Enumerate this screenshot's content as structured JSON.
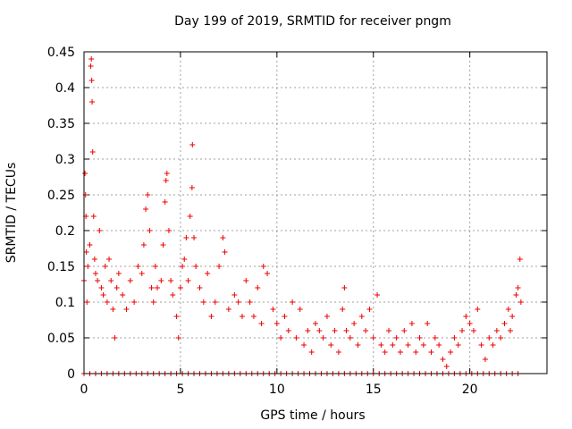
{
  "chart_data": {
    "type": "scatter",
    "title": "Day 199 of 2019, SRMTID for receiver pngm",
    "xlabel": "GPS time / hours",
    "ylabel": "SRMTID / TECUs",
    "xlim": [
      0,
      24
    ],
    "ylim": [
      0,
      0.45
    ],
    "xticks": [
      0,
      5,
      10,
      15,
      20
    ],
    "yticks": [
      0,
      0.05,
      0.1,
      0.15,
      0.2,
      0.25,
      0.3,
      0.35,
      0.4,
      0.45
    ],
    "ytick_labels": [
      "0",
      "0.05",
      "0.1",
      "0.15",
      "0.2",
      "0.25",
      "0.3",
      "0.35",
      "0.4",
      "0.45"
    ],
    "grid": true,
    "marker": "+",
    "color": "#ee0000",
    "series": [
      {
        "name": "SRMTID",
        "points": [
          [
            0.0,
            0.13
          ],
          [
            0.05,
            0.28
          ],
          [
            0.08,
            0.25
          ],
          [
            0.1,
            0.22
          ],
          [
            0.12,
            0.17
          ],
          [
            0.15,
            0.1
          ],
          [
            0.2,
            0.15
          ],
          [
            0.3,
            0.18
          ],
          [
            0.35,
            0.43
          ],
          [
            0.38,
            0.44
          ],
          [
            0.4,
            0.41
          ],
          [
            0.42,
            0.38
          ],
          [
            0.45,
            0.31
          ],
          [
            0.5,
            0.22
          ],
          [
            0.55,
            0.16
          ],
          [
            0.6,
            0.14
          ],
          [
            0.7,
            0.13
          ],
          [
            0.8,
            0.2
          ],
          [
            0.9,
            0.12
          ],
          [
            1.0,
            0.11
          ],
          [
            1.1,
            0.15
          ],
          [
            1.2,
            0.1
          ],
          [
            1.3,
            0.16
          ],
          [
            1.4,
            0.13
          ],
          [
            1.5,
            0.09
          ],
          [
            1.6,
            0.05
          ],
          [
            1.7,
            0.12
          ],
          [
            1.8,
            0.14
          ],
          [
            2.0,
            0.11
          ],
          [
            2.2,
            0.09
          ],
          [
            2.4,
            0.13
          ],
          [
            2.6,
            0.1
          ],
          [
            2.8,
            0.15
          ],
          [
            3.0,
            0.14
          ],
          [
            3.1,
            0.18
          ],
          [
            3.2,
            0.23
          ],
          [
            3.3,
            0.25
          ],
          [
            3.4,
            0.2
          ],
          [
            3.5,
            0.12
          ],
          [
            3.6,
            0.1
          ],
          [
            3.7,
            0.15
          ],
          [
            3.8,
            0.12
          ],
          [
            4.0,
            0.13
          ],
          [
            4.1,
            0.18
          ],
          [
            4.2,
            0.24
          ],
          [
            4.25,
            0.27
          ],
          [
            4.3,
            0.28
          ],
          [
            4.4,
            0.2
          ],
          [
            4.5,
            0.13
          ],
          [
            4.6,
            0.11
          ],
          [
            4.8,
            0.08
          ],
          [
            4.9,
            0.05
          ],
          [
            5.0,
            0.12
          ],
          [
            5.1,
            0.15
          ],
          [
            5.2,
            0.16
          ],
          [
            5.3,
            0.19
          ],
          [
            5.4,
            0.13
          ],
          [
            5.5,
            0.22
          ],
          [
            5.6,
            0.26
          ],
          [
            5.62,
            0.32
          ],
          [
            5.7,
            0.19
          ],
          [
            5.8,
            0.15
          ],
          [
            6.0,
            0.12
          ],
          [
            6.2,
            0.1
          ],
          [
            6.4,
            0.14
          ],
          [
            6.6,
            0.08
          ],
          [
            6.8,
            0.1
          ],
          [
            7.0,
            0.15
          ],
          [
            7.2,
            0.19
          ],
          [
            7.3,
            0.17
          ],
          [
            7.5,
            0.09
          ],
          [
            7.8,
            0.11
          ],
          [
            8.0,
            0.1
          ],
          [
            8.2,
            0.08
          ],
          [
            8.4,
            0.13
          ],
          [
            8.6,
            0.1
          ],
          [
            8.8,
            0.08
          ],
          [
            9.0,
            0.12
          ],
          [
            9.2,
            0.07
          ],
          [
            9.3,
            0.15
          ],
          [
            9.5,
            0.14
          ],
          [
            9.8,
            0.09
          ],
          [
            10.0,
            0.07
          ],
          [
            10.2,
            0.05
          ],
          [
            10.4,
            0.08
          ],
          [
            10.6,
            0.06
          ],
          [
            10.8,
            0.1
          ],
          [
            11.0,
            0.05
          ],
          [
            11.2,
            0.09
          ],
          [
            11.4,
            0.04
          ],
          [
            11.6,
            0.06
          ],
          [
            11.8,
            0.03
          ],
          [
            12.0,
            0.07
          ],
          [
            12.2,
            0.06
          ],
          [
            12.4,
            0.05
          ],
          [
            12.6,
            0.08
          ],
          [
            12.8,
            0.04
          ],
          [
            13.0,
            0.06
          ],
          [
            13.2,
            0.03
          ],
          [
            13.4,
            0.09
          ],
          [
            13.5,
            0.12
          ],
          [
            13.6,
            0.06
          ],
          [
            13.8,
            0.05
          ],
          [
            14.0,
            0.07
          ],
          [
            14.2,
            0.04
          ],
          [
            14.4,
            0.08
          ],
          [
            14.6,
            0.06
          ],
          [
            14.8,
            0.09
          ],
          [
            15.0,
            0.05
          ],
          [
            15.2,
            0.11
          ],
          [
            15.4,
            0.04
          ],
          [
            15.6,
            0.03
          ],
          [
            15.8,
            0.06
          ],
          [
            16.0,
            0.04
          ],
          [
            16.2,
            0.05
          ],
          [
            16.4,
            0.03
          ],
          [
            16.6,
            0.06
          ],
          [
            16.8,
            0.04
          ],
          [
            17.0,
            0.07
          ],
          [
            17.2,
            0.03
          ],
          [
            17.4,
            0.05
          ],
          [
            17.6,
            0.04
          ],
          [
            17.8,
            0.07
          ],
          [
            18.0,
            0.03
          ],
          [
            18.2,
            0.05
          ],
          [
            18.4,
            0.04
          ],
          [
            18.6,
            0.02
          ],
          [
            18.8,
            0.01
          ],
          [
            19.0,
            0.03
          ],
          [
            19.2,
            0.05
          ],
          [
            19.4,
            0.04
          ],
          [
            19.6,
            0.06
          ],
          [
            19.8,
            0.08
          ],
          [
            20.0,
            0.07
          ],
          [
            20.2,
            0.06
          ],
          [
            20.4,
            0.09
          ],
          [
            20.6,
            0.04
          ],
          [
            20.8,
            0.02
          ],
          [
            21.0,
            0.05
          ],
          [
            21.2,
            0.04
          ],
          [
            21.4,
            0.06
          ],
          [
            21.6,
            0.05
          ],
          [
            21.8,
            0.07
          ],
          [
            22.0,
            0.09
          ],
          [
            22.1,
            0.06
          ],
          [
            22.2,
            0.08
          ],
          [
            22.4,
            0.11
          ],
          [
            22.5,
            0.12
          ],
          [
            22.6,
            0.16
          ],
          [
            22.65,
            0.1
          ]
        ],
        "zero_points_x": [
          0.0,
          0.3,
          0.6,
          0.9,
          1.2,
          1.5,
          1.8,
          2.1,
          2.4,
          2.7,
          3.0,
          3.3,
          3.6,
          3.9,
          4.2,
          4.5,
          4.8,
          5.1,
          5.4,
          5.7,
          6.0,
          6.3,
          6.6,
          6.9,
          7.2,
          7.5,
          7.8,
          8.1,
          8.4,
          8.7,
          9.0,
          9.3,
          9.6,
          9.9,
          10.2,
          10.5,
          10.8,
          11.1,
          11.4,
          11.7,
          12.0,
          12.3,
          12.6,
          12.9,
          13.2,
          13.5,
          13.8,
          14.1,
          14.4,
          14.7,
          15.0,
          15.3,
          15.6,
          15.9,
          16.2,
          16.5,
          16.8,
          17.1,
          17.4,
          17.7,
          18.0,
          18.3,
          18.6,
          18.9,
          19.2,
          19.5,
          19.8,
          20.1,
          20.4,
          20.7,
          21.0,
          21.3,
          21.6,
          21.9,
          22.2,
          22.5
        ]
      }
    ]
  }
}
